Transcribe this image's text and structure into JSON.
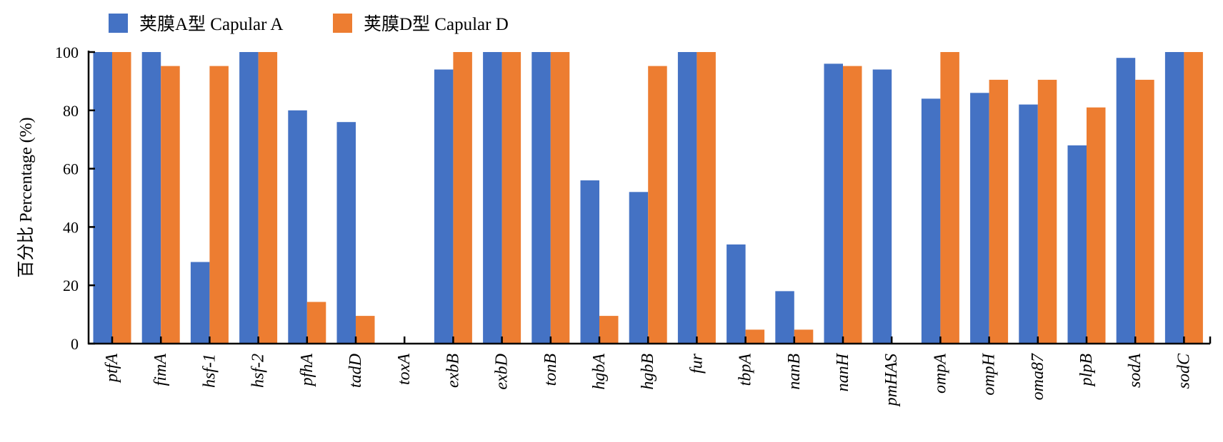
{
  "chart_data": {
    "type": "bar",
    "ylabel": "百分比 Percentage (%)",
    "ylim": [
      0,
      100
    ],
    "yticks": [
      0,
      20,
      40,
      60,
      80,
      100
    ],
    "grid": false,
    "legend_position": "top-left",
    "categories": [
      "ptfA",
      "fimA",
      "hsf-1",
      "hsf-2",
      "pfhA",
      "tadD",
      "toxA",
      "exbB",
      "exbD",
      "tonB",
      "hgbA",
      "hgbB",
      "fur",
      "tbpA",
      "nanB",
      "nanH",
      "pmHAS",
      "ompA",
      "ompH",
      "oma87",
      "plpB",
      "sodA",
      "sodC"
    ],
    "series": [
      {
        "name": "荚膜A型 Capular A",
        "color": "#4472C4",
        "values": [
          100,
          100,
          28,
          100,
          80,
          76,
          0,
          94,
          100,
          100,
          56,
          52,
          100,
          34,
          18,
          96,
          94,
          84,
          86,
          82,
          68,
          98,
          100
        ]
      },
      {
        "name": "荚膜D型 Capular D",
        "color": "#ED7D31",
        "values": [
          100,
          95.2,
          95.2,
          100,
          14.3,
          9.5,
          0,
          100,
          100,
          100,
          9.5,
          95.2,
          100,
          4.8,
          4.8,
          95.2,
          0,
          100,
          90.5,
          90.5,
          81,
          90.5,
          100
        ]
      }
    ]
  }
}
